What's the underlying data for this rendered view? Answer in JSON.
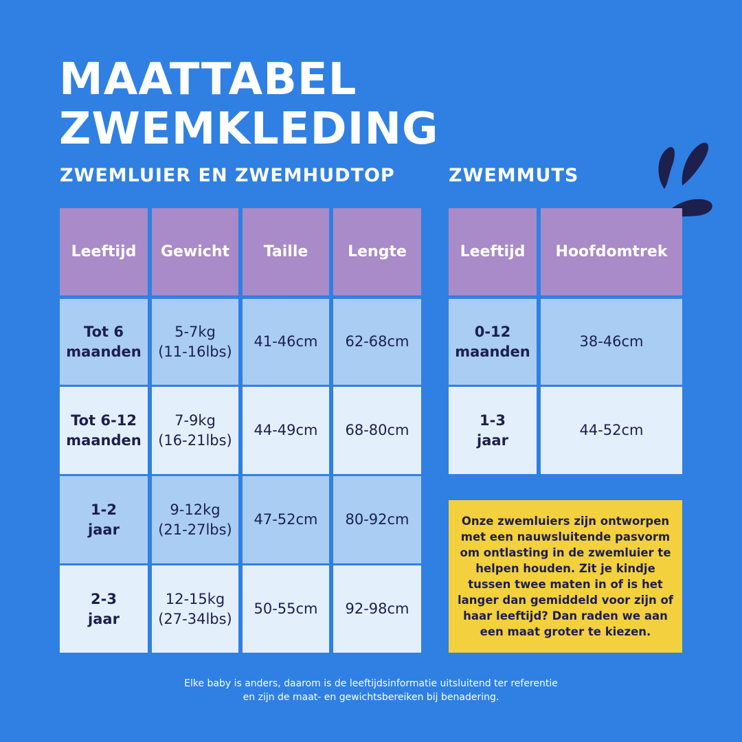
{
  "header": {
    "title": [
      "MAATTABEL",
      "ZWEMKLEDING"
    ]
  },
  "tables": [
    {
      "heading": "ZWEMLUIER EN ZWEMHUDTOP",
      "columns": [
        "Leeftijd",
        "Gewicht",
        "Taille",
        "Lengte"
      ],
      "rows": [
        [
          [
            "Tot 6",
            "maanden"
          ],
          [
            "5-7kg",
            "(11-16lbs)"
          ],
          [
            "41-46cm"
          ],
          [
            "62-68cm"
          ]
        ],
        [
          [
            "Tot 6-12",
            "maanden"
          ],
          [
            "7-9kg",
            "(16-21lbs)"
          ],
          [
            "44-49cm"
          ],
          [
            "68-80cm"
          ]
        ],
        [
          [
            "1-2",
            "jaar"
          ],
          [
            "9-12kg",
            "(21-27lbs)"
          ],
          [
            "47-52cm"
          ],
          [
            "80-92cm"
          ]
        ],
        [
          [
            "2-3",
            "jaar"
          ],
          [
            "12-15kg",
            "(27-34lbs)"
          ],
          [
            "50-55cm"
          ],
          [
            "92-98cm"
          ]
        ]
      ]
    },
    {
      "heading": "ZWEMMUTS",
      "columns": [
        "Leeftijd",
        "Hoofdomtrek"
      ],
      "rows": [
        [
          [
            "0-12",
            "maanden"
          ],
          [
            "38-46cm"
          ]
        ],
        [
          [
            "1-3",
            "jaar"
          ],
          [
            "44-52cm"
          ]
        ]
      ]
    }
  ],
  "note": "Onze zwemluiers zijn ontworpen met een nauwsluitende pasvorm om ontlasting in de zwemluier te helpen houden. Zit je kindje tussen twee maten in of is het langer dan gemiddeld voor zijn of haar leeftijd? Dan raden we aan een maat groter te kiezen.",
  "footer": [
    "Elke baby is anders, daarom is de leeftijdsinformatie uitsluitend ter referentie",
    "en zijn de maat- en gewichtsbereiken bij benadering."
  ]
}
